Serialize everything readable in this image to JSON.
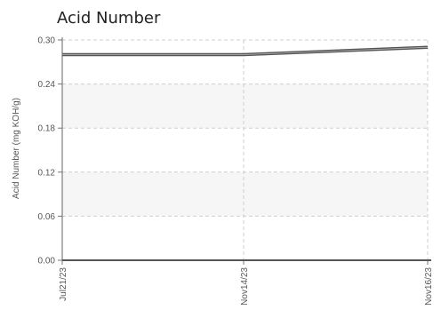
{
  "chart_data": {
    "type": "line",
    "title": "Acid Number",
    "ylabel": "Acid Number (mg KOH/g)",
    "xlabel": "",
    "x_categories": [
      "Jul21/23",
      "Nov14/23",
      "Nov16/23"
    ],
    "y_ticks": [
      "0.30",
      "0.24",
      "0.18",
      "0.12",
      "0.06",
      "0.00"
    ],
    "ylim": [
      0,
      0.3
    ],
    "grid": true,
    "series": [
      {
        "values": [
          0.28,
          0.28,
          0.29
        ],
        "color": "#555555"
      }
    ]
  }
}
